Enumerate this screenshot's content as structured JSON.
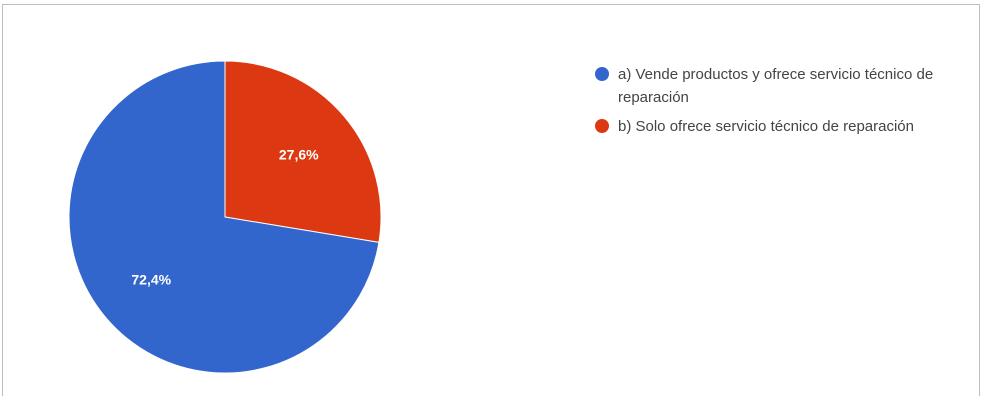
{
  "chart_data": {
    "type": "pie",
    "title": "",
    "slices": [
      {
        "label": "a) Vende productos y ofrece servicio técnico de reparación",
        "value": 72.4,
        "display": "72,4%",
        "color": "#3366cc"
      },
      {
        "label": "b) Solo ofrece servicio técnico de reparación",
        "value": 27.6,
        "display": "27,6%",
        "color": "#dc3912"
      }
    ],
    "legend_position": "right",
    "start_angle_deg": 0,
    "direction": "clockwise"
  }
}
